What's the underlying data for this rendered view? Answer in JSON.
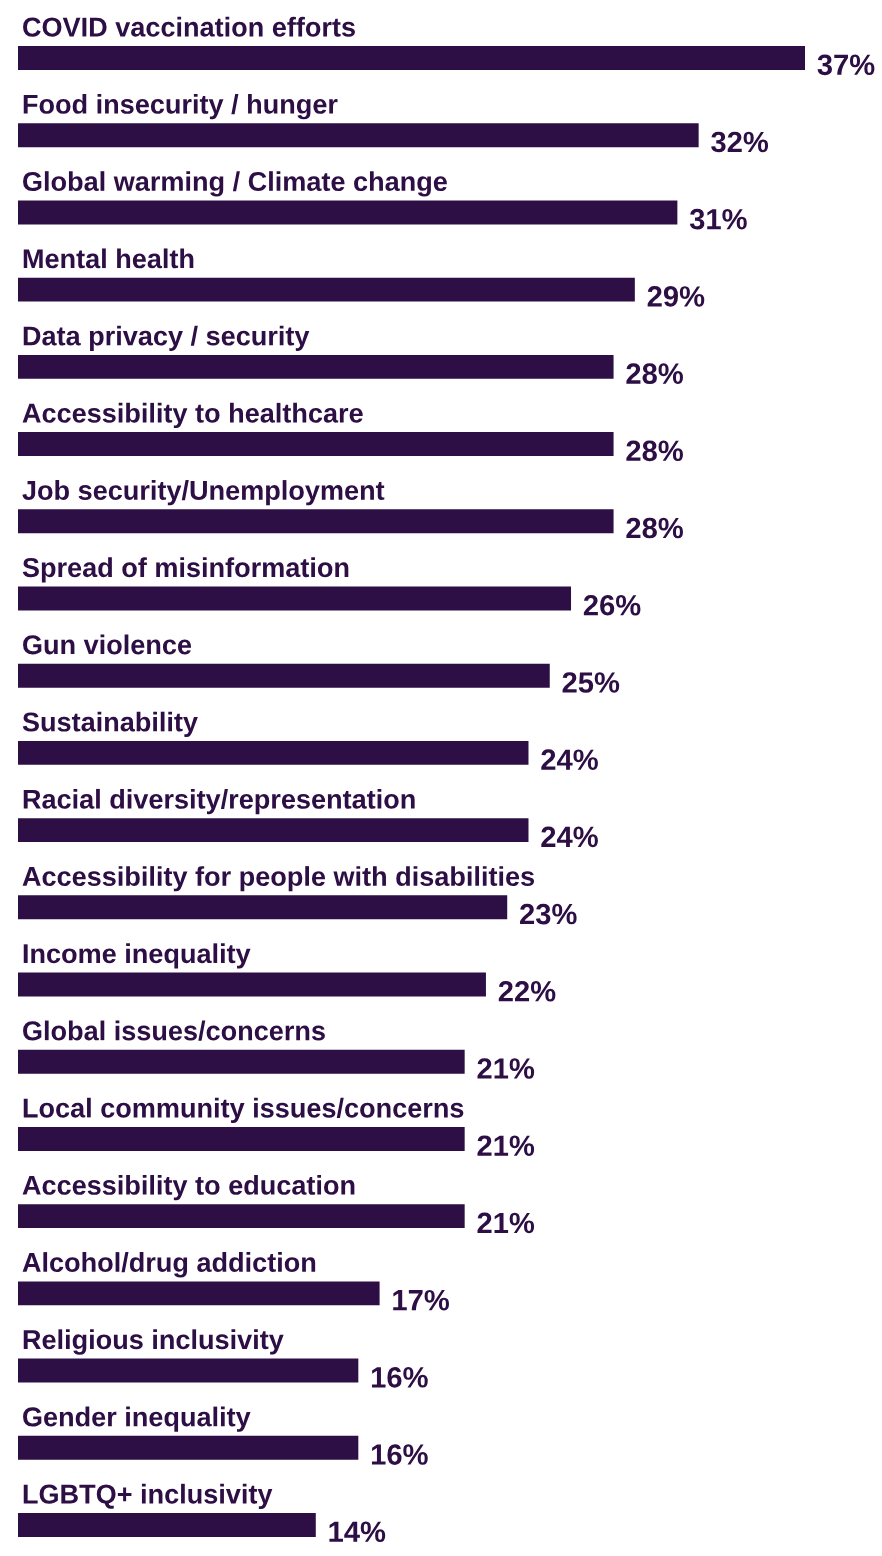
{
  "chart_data": {
    "type": "bar",
    "orientation": "horizontal",
    "color": "#2d0f45",
    "categories": [
      "COVID vaccination efforts",
      "Food insecurity / hunger",
      "Global warming / Climate change",
      "Mental health",
      "Data privacy / security",
      "Accessibility to healthcare",
      "Job security/Unemployment",
      "Spread of misinformation",
      "Gun violence",
      "Sustainability",
      "Racial diversity/representation",
      "Accessibility for people with disabilities",
      "Income inequality",
      "Global issues/concerns",
      "Local community issues/concerns",
      "Accessibility to education",
      "Alcohol/drug addiction",
      "Religious inclusivity",
      "Gender inequality",
      "LGBTQ+ inclusivity"
    ],
    "values": [
      37,
      32,
      31,
      29,
      28,
      28,
      28,
      26,
      25,
      24,
      24,
      23,
      22,
      21,
      21,
      21,
      17,
      16,
      16,
      14
    ],
    "value_labels": [
      "37%",
      "32%",
      "31%",
      "29%",
      "28%",
      "28%",
      "28%",
      "26%",
      "25%",
      "24%",
      "24%",
      "23%",
      "22%",
      "21%",
      "21%",
      "21%",
      "17%",
      "16%",
      "16%",
      "14%"
    ],
    "data_labels": false
  }
}
